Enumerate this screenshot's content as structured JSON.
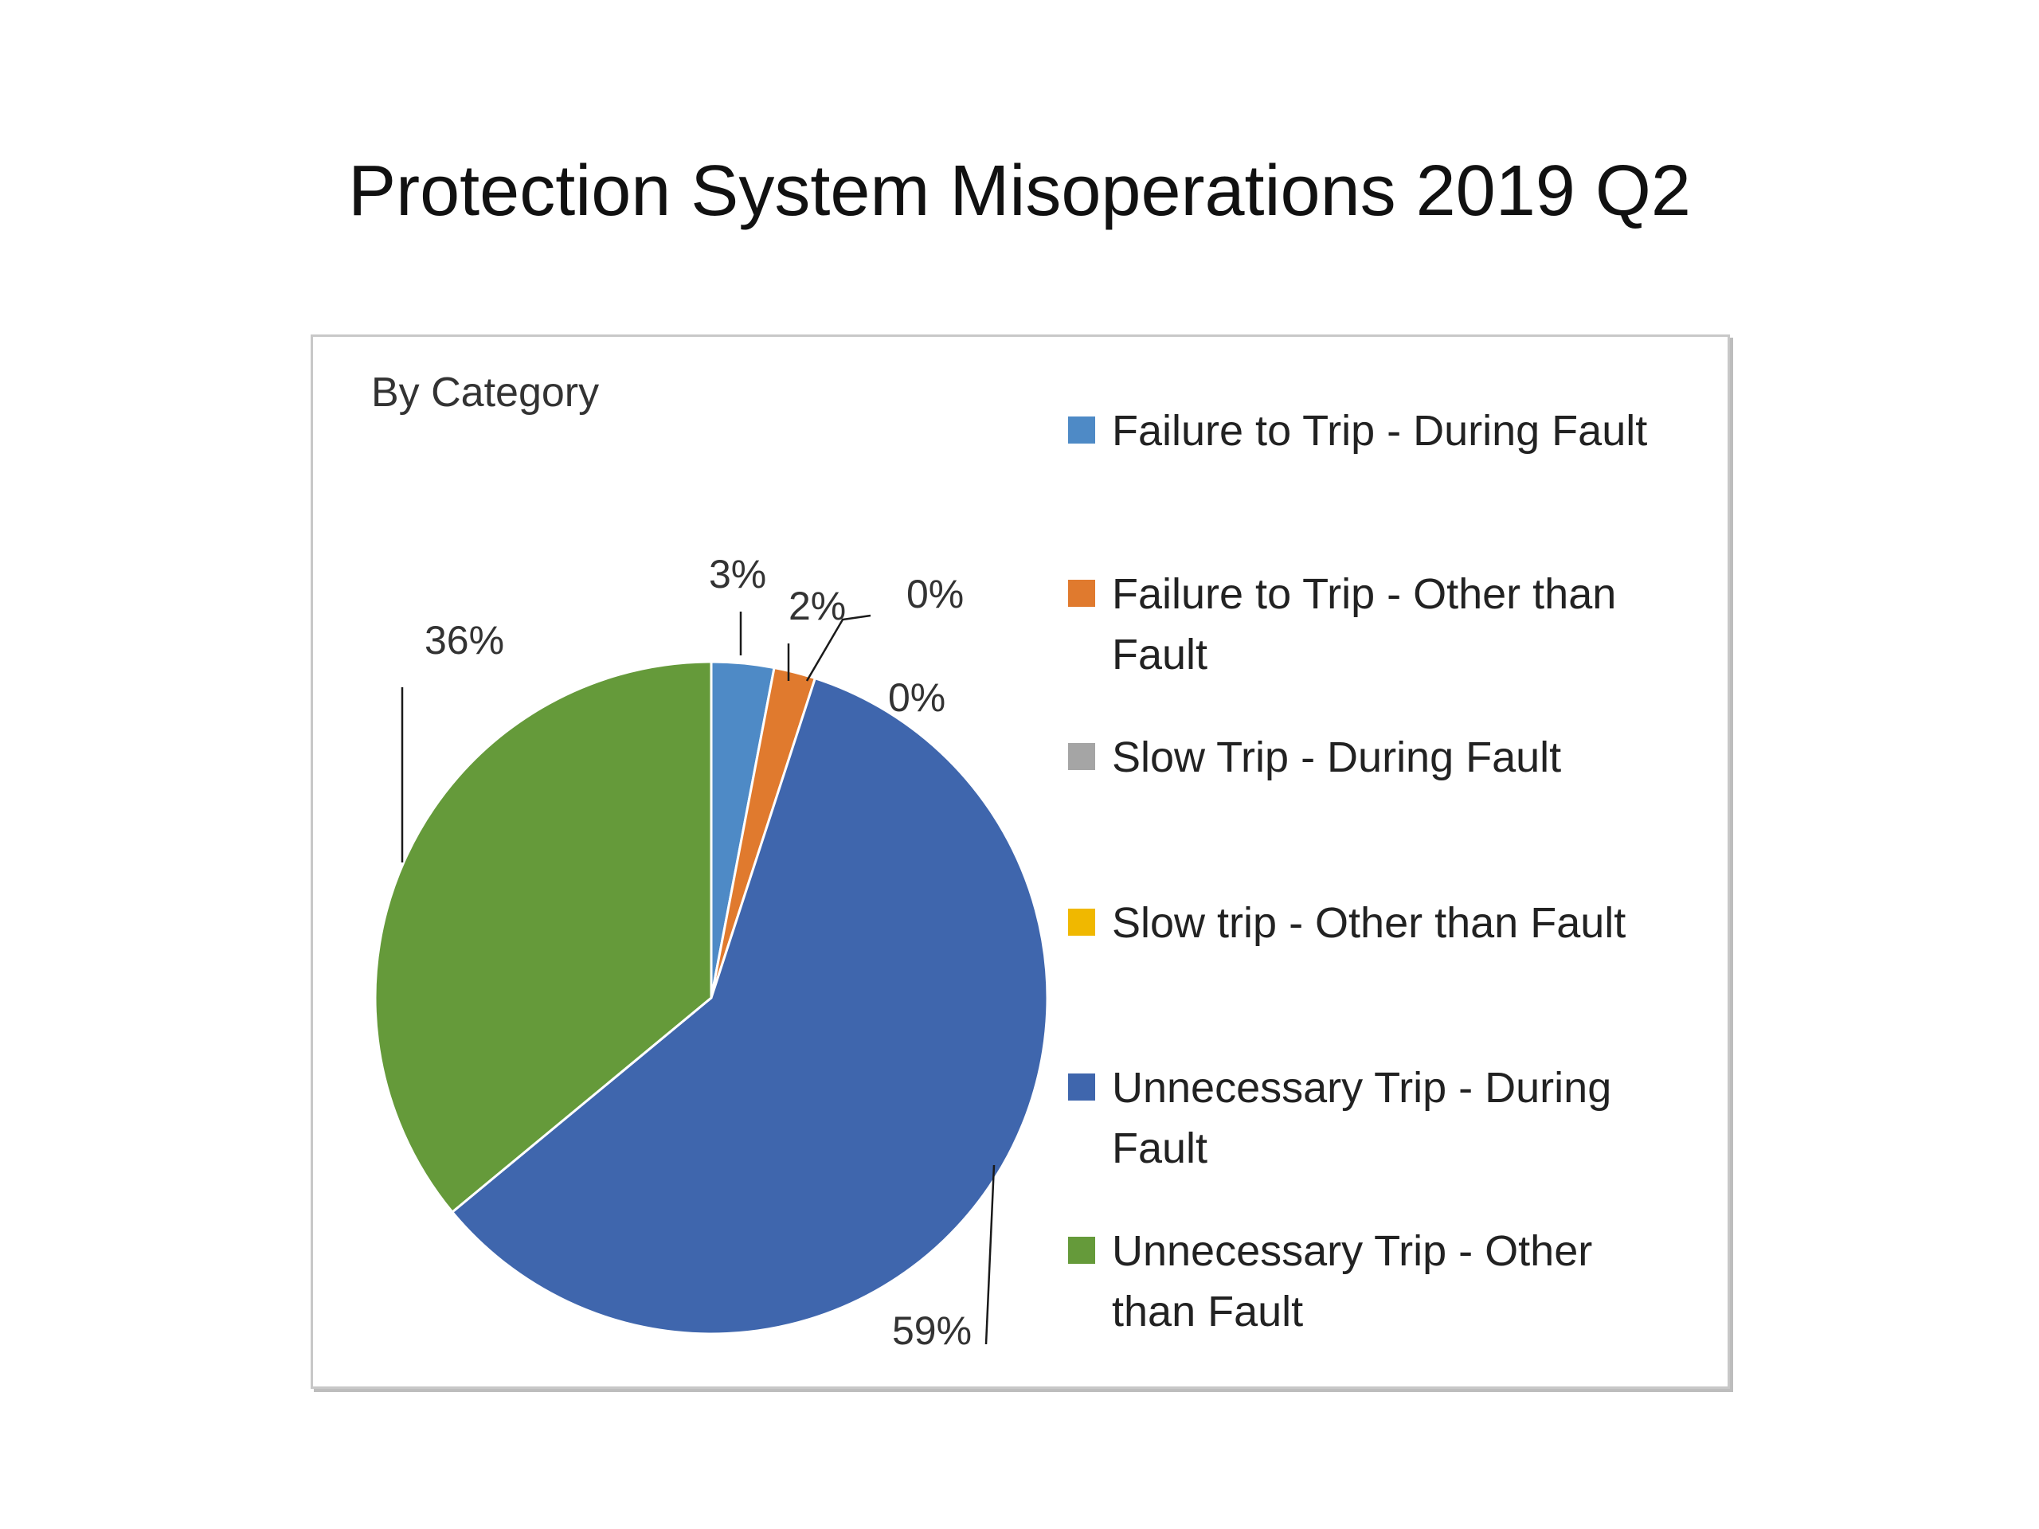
{
  "slide": {
    "title": "Protection System Misoperations 2019 Q2"
  },
  "chart_data": {
    "type": "pie",
    "title": "By Category",
    "categories": [
      "Failure to Trip - During Fault",
      "Failure to Trip - Other than Fault",
      "Slow Trip - During Fault",
      "Slow trip - Other than Fault",
      "Unnecessary Trip - During Fault",
      "Unnecessary Trip - Other than Fault"
    ],
    "legend_lines": [
      [
        "Failure to Trip - During Fault"
      ],
      [
        "Failure to Trip - Other than",
        "Fault"
      ],
      [
        "Slow Trip - During Fault"
      ],
      [
        "Slow trip - Other than Fault"
      ],
      [
        "Unnecessary Trip - During",
        "Fault"
      ],
      [
        "Unnecessary Trip - Other",
        "than Fault"
      ]
    ],
    "values": [
      3,
      2,
      0,
      0,
      59,
      36
    ],
    "data_labels": [
      "3%",
      "2%",
      "0%",
      "0%",
      "59%",
      "36%"
    ],
    "colors": [
      "#4e8ac6",
      "#e07a2e",
      "#a5a5a5",
      "#f0b800",
      "#3f66ad",
      "#659a3a"
    ],
    "legend_position": "right"
  }
}
